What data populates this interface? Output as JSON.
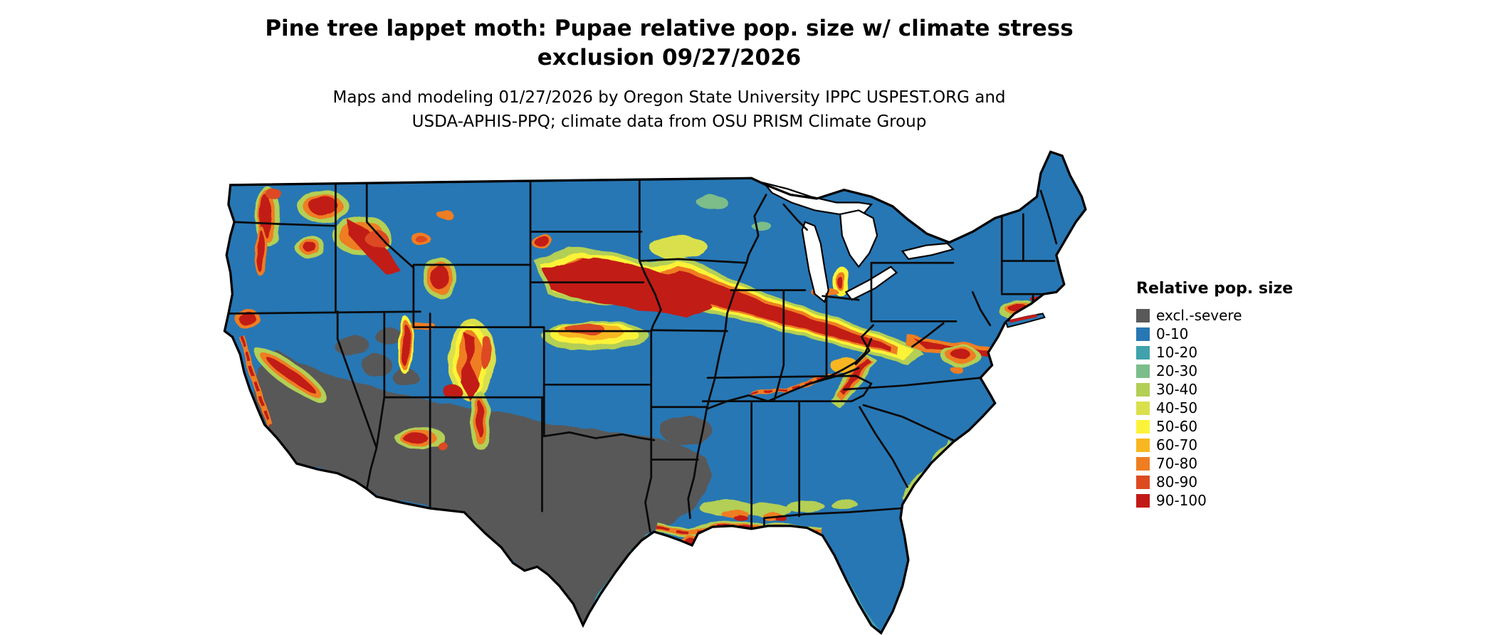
{
  "title": {
    "line1": "Pine tree lappet moth: Pupae relative pop. size w/ climate stress",
    "line2": "exclusion 09/27/2026"
  },
  "subtitle": {
    "line1": "Maps and modeling 01/27/2026 by Oregon State University IPPC USPEST.ORG and",
    "line2": "USDA-APHIS-PPQ; climate data from OSU PRISM Climate Group"
  },
  "legend": {
    "title": "Relative pop. size",
    "items": [
      {
        "bin": "excl",
        "label": "excl.-severe",
        "color": "#595959"
      },
      {
        "bin": "0-10",
        "label": "0-10",
        "color": "#2777b4"
      },
      {
        "bin": "10-20",
        "label": "10-20",
        "color": "#3fa2ad"
      },
      {
        "bin": "20-30",
        "label": "20-30",
        "color": "#7cbd8a"
      },
      {
        "bin": "30-40",
        "label": "30-40",
        "color": "#b3cf54"
      },
      {
        "bin": "40-50",
        "label": "40-50",
        "color": "#d9e04c"
      },
      {
        "bin": "50-60",
        "label": "50-60",
        "color": "#fcf339"
      },
      {
        "bin": "60-70",
        "label": "60-70",
        "color": "#f8b620"
      },
      {
        "bin": "70-80",
        "label": "70-80",
        "color": "#ef7d21"
      },
      {
        "bin": "80-90",
        "label": "80-90",
        "color": "#dd4a20"
      },
      {
        "bin": "90-100",
        "label": "90-100",
        "color": "#c21a17"
      }
    ]
  }
}
